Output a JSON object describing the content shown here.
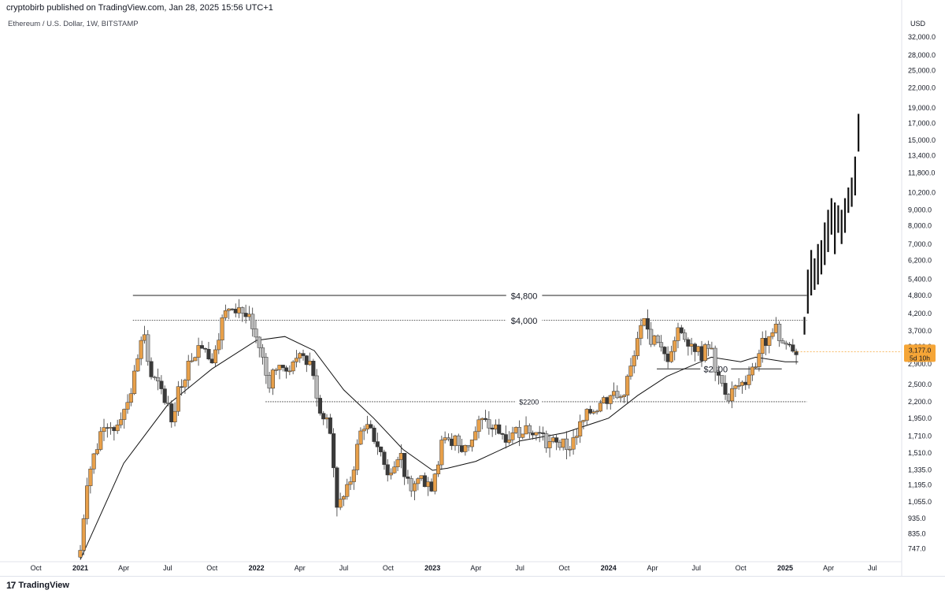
{
  "header": {
    "published": "cryptobirb published on TradingView.com, Jan 28, 2025 15:56 UTC+1",
    "symbol": "Ethereum / U.S. Dollar, 1W, BITSTAMP"
  },
  "footer": {
    "brand": "TradingView",
    "logo": "17"
  },
  "colors": {
    "up": "#e8a04a",
    "down": "#3a3a3a",
    "down_light": "#b8b8b8",
    "projection": "#111111",
    "price_tag": "#f5a537"
  },
  "chart_data": {
    "type": "candlestick",
    "title": "Ethereum / U.S. Dollar, 1W, BITSTAMP",
    "yscale": "log",
    "ylabel": "USD",
    "ylim": [
      690,
      38000
    ],
    "x_tick_labels": [
      "Oct",
      "2021",
      "Apr",
      "Jul",
      "Oct",
      "2022",
      "Apr",
      "Jul",
      "Oct",
      "2023",
      "Apr",
      "Jul",
      "Oct",
      "2024",
      "Apr",
      "Jul",
      "Oct",
      "2025",
      "Apr",
      "Jul"
    ],
    "y_tick_labels": [
      "32,000.0",
      "28,000.0",
      "25,000.0",
      "22,000.0",
      "19,000.0",
      "17,000.0",
      "15,000.0",
      "13,400.0",
      "11,800.0",
      "10,200.0",
      "9,000.0",
      "8,000.0",
      "7,000.0",
      "6,200.0",
      "5,400.0",
      "4,800.0",
      "4,200.0",
      "3,700.0",
      "3,300.0",
      "2,900.0",
      "2,500.0",
      "2,200.0",
      "1,950.0",
      "1,710.0",
      "1,510.0",
      "1,335.0",
      "1,195.0",
      "1,055.0",
      "935.0",
      "835.0",
      "747.0"
    ],
    "levels": [
      {
        "label": "$4,800",
        "value": 4800,
        "style": "solid"
      },
      {
        "label": "$4,000",
        "value": 4000,
        "style": "dotted"
      },
      {
        "label": "$2800",
        "value": 2800,
        "style": "solid"
      },
      {
        "label": "$2200",
        "value": 2200,
        "style": "dotted"
      }
    ],
    "current_price": "3,177.0",
    "countdown": "5d 10h",
    "series": [
      {
        "name": "ETHUSD",
        "kind": "weekly_close_path",
        "points": [
          [
            "2021-01-01",
            740
          ],
          [
            "2021-01-15",
            1250
          ],
          [
            "2021-02-05",
            1600
          ],
          [
            "2021-02-20",
            1950
          ],
          [
            "2021-03-10",
            1800
          ],
          [
            "2021-04-01",
            2100
          ],
          [
            "2021-04-20",
            2500
          ],
          [
            "2021-05-10",
            3900
          ],
          [
            "2021-05-25",
            2700
          ],
          [
            "2021-06-15",
            2400
          ],
          [
            "2021-07-10",
            2000
          ],
          [
            "2021-07-31",
            2600
          ],
          [
            "2021-08-25",
            3200
          ],
          [
            "2021-09-10",
            3400
          ],
          [
            "2021-09-28",
            3000
          ],
          [
            "2021-10-20",
            3900
          ],
          [
            "2021-11-10",
            4600
          ],
          [
            "2021-12-01",
            4300
          ],
          [
            "2021-12-20",
            3900
          ],
          [
            "2022-01-10",
            3200
          ],
          [
            "2022-01-25",
            2500
          ],
          [
            "2022-02-15",
            3000
          ],
          [
            "2022-03-10",
            2600
          ],
          [
            "2022-04-01",
            3300
          ],
          [
            "2022-04-25",
            2900
          ],
          [
            "2022-05-15",
            2000
          ],
          [
            "2022-06-01",
            1800
          ],
          [
            "2022-06-18",
            1000
          ],
          [
            "2022-07-10",
            1150
          ],
          [
            "2022-08-10",
            1900
          ],
          [
            "2022-09-10",
            1600
          ],
          [
            "2022-09-30",
            1330
          ],
          [
            "2022-10-25",
            1550
          ],
          [
            "2022-11-10",
            1200
          ],
          [
            "2022-12-10",
            1250
          ],
          [
            "2022-12-30",
            1200
          ],
          [
            "2023-01-20",
            1600
          ],
          [
            "2023-02-15",
            1650
          ],
          [
            "2023-03-10",
            1550
          ],
          [
            "2023-04-10",
            1900
          ],
          [
            "2023-05-10",
            1800
          ],
          [
            "2023-06-15",
            1700
          ],
          [
            "2023-07-15",
            1900
          ],
          [
            "2023-08-20",
            1650
          ],
          [
            "2023-09-15",
            1600
          ],
          [
            "2023-10-10",
            1580
          ],
          [
            "2023-11-05",
            1850
          ],
          [
            "2023-11-30",
            2100
          ],
          [
            "2024-01-05",
            2300
          ],
          [
            "2024-01-25",
            2250
          ],
          [
            "2024-02-20",
            2900
          ],
          [
            "2024-03-12",
            3900
          ],
          [
            "2024-04-05",
            3400
          ],
          [
            "2024-04-30",
            3000
          ],
          [
            "2024-05-25",
            3800
          ],
          [
            "2024-06-15",
            3500
          ],
          [
            "2024-07-10",
            3100
          ],
          [
            "2024-07-31",
            3300
          ],
          [
            "2024-08-10",
            2600
          ],
          [
            "2024-09-05",
            2300
          ],
          [
            "2024-09-30",
            2500
          ],
          [
            "2024-10-20",
            2600
          ],
          [
            "2024-11-10",
            3200
          ],
          [
            "2024-12-05",
            3900
          ],
          [
            "2024-12-25",
            3400
          ],
          [
            "2025-01-15",
            3300
          ],
          [
            "2025-01-28",
            3177
          ]
        ]
      },
      {
        "name": "Moving average",
        "kind": "line",
        "points": [
          [
            "2021-01-01",
            690
          ],
          [
            "2021-04-01",
            1400
          ],
          [
            "2021-07-01",
            2150
          ],
          [
            "2021-10-01",
            2800
          ],
          [
            "2022-01-01",
            3450
          ],
          [
            "2022-03-01",
            3550
          ],
          [
            "2022-05-01",
            3200
          ],
          [
            "2022-07-01",
            2400
          ],
          [
            "2022-09-01",
            1950
          ],
          [
            "2022-11-01",
            1550
          ],
          [
            "2023-01-01",
            1330
          ],
          [
            "2023-02-01",
            1350
          ],
          [
            "2023-04-01",
            1420
          ],
          [
            "2023-07-01",
            1650
          ],
          [
            "2023-10-01",
            1750
          ],
          [
            "2024-01-01",
            1950
          ],
          [
            "2024-03-01",
            2300
          ],
          [
            "2024-05-01",
            2650
          ],
          [
            "2024-08-01",
            3050
          ],
          [
            "2024-10-01",
            2950
          ],
          [
            "2024-11-01",
            3050
          ],
          [
            "2025-01-01",
            2950
          ],
          [
            "2025-01-28",
            2950
          ]
        ]
      },
      {
        "name": "Projection",
        "kind": "projection_bars",
        "points": [
          [
            "2025-01-28",
            3600,
            4100
          ],
          [
            "2025-02-04",
            4200,
            5800
          ],
          [
            "2025-02-11",
            4800,
            6700
          ],
          [
            "2025-02-18",
            5000,
            6300
          ],
          [
            "2025-02-25",
            5200,
            7000
          ],
          [
            "2025-03-04",
            5600,
            7200
          ],
          [
            "2025-03-11",
            6000,
            8200
          ],
          [
            "2025-03-18",
            6600,
            9000
          ],
          [
            "2025-03-25",
            7500,
            9800
          ],
          [
            "2025-04-01",
            6500,
            9500
          ],
          [
            "2025-04-08",
            7600,
            9300
          ],
          [
            "2025-04-15",
            7000,
            9000
          ],
          [
            "2025-04-22",
            7600,
            9800
          ],
          [
            "2025-04-29",
            8800,
            10600
          ],
          [
            "2025-05-06",
            9200,
            11400
          ],
          [
            "2025-05-13",
            10000,
            13300
          ],
          [
            "2025-05-20",
            13800,
            18200
          ]
        ]
      }
    ]
  }
}
